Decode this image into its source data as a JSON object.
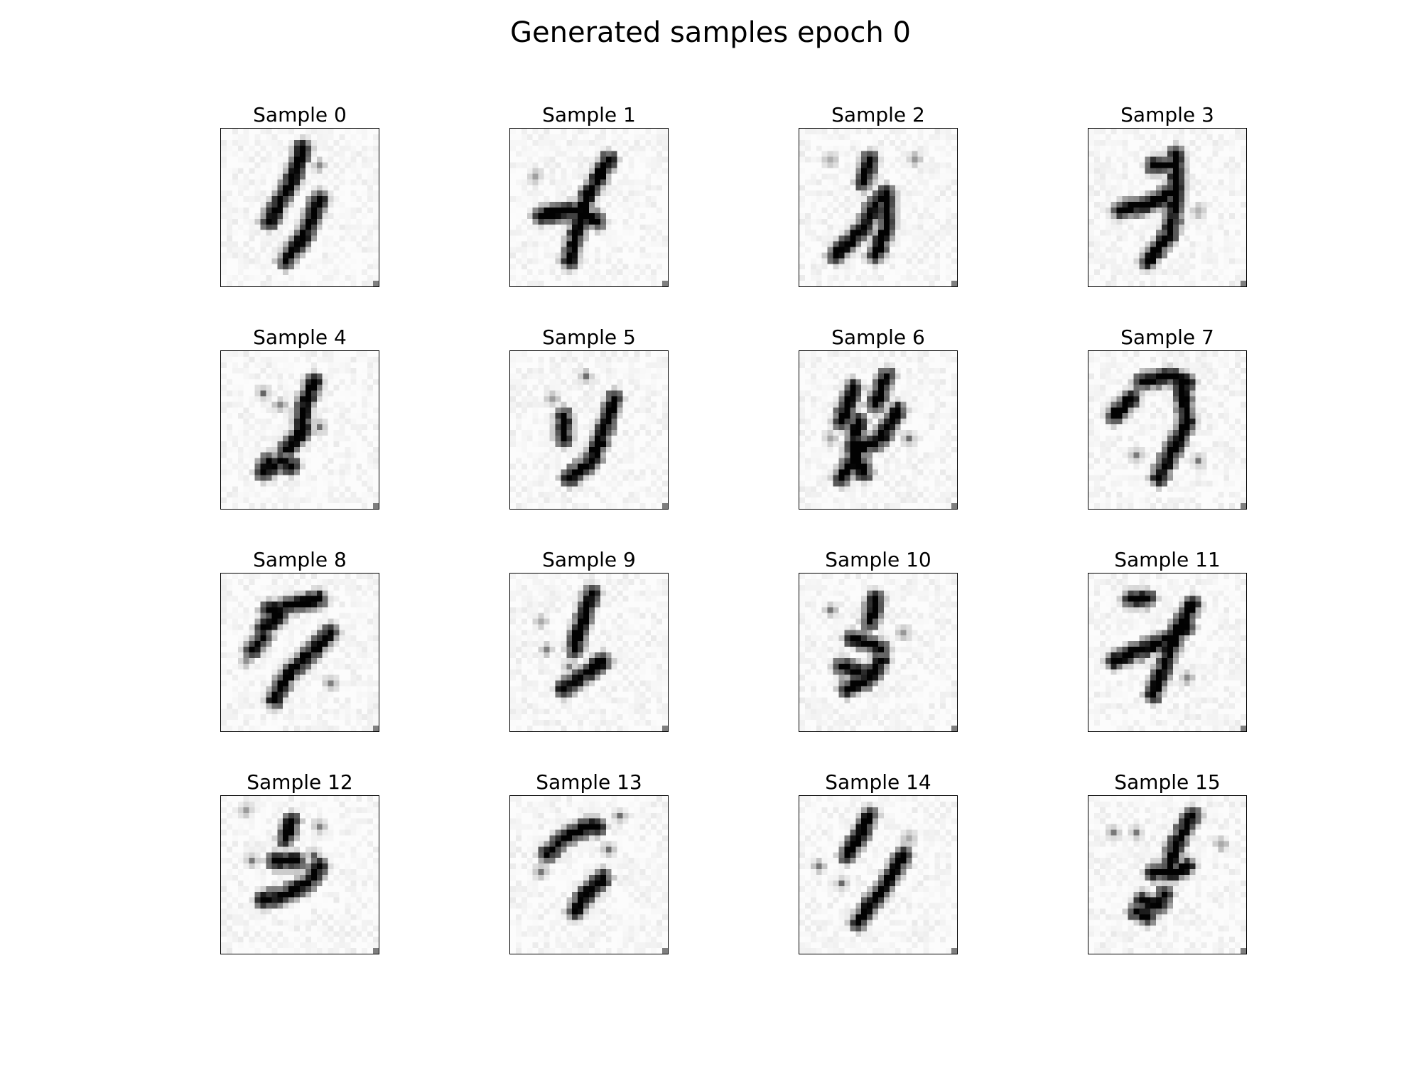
{
  "title": "Generated samples epoch 0",
  "colormap": {
    "background": "#ffffff",
    "ink": "#000000"
  },
  "samples": [
    {
      "label": "Sample 0",
      "strokes": [
        [
          [
            14,
            3
          ],
          [
            12,
            9
          ],
          [
            8,
            16
          ]
        ],
        [
          [
            17,
            12
          ],
          [
            14,
            19
          ],
          [
            11,
            23
          ]
        ]
      ],
      "blobs": [
        [
          17,
          6
        ],
        [
          18,
          12
        ]
      ]
    },
    {
      "label": "Sample 1",
      "strokes": [
        [
          [
            17,
            5
          ],
          [
            13,
            12
          ],
          [
            11,
            19
          ],
          [
            10,
            23
          ]
        ],
        [
          [
            5,
            15
          ],
          [
            11,
            14
          ],
          [
            15,
            16
          ]
        ]
      ],
      "blobs": [
        [
          4,
          8
        ]
      ]
    },
    {
      "label": "Sample 2",
      "strokes": [
        [
          [
            12,
            5
          ],
          [
            11,
            9
          ]
        ],
        [
          [
            6,
            22
          ],
          [
            11,
            17
          ],
          [
            13,
            13
          ],
          [
            15,
            11
          ],
          [
            15,
            17
          ],
          [
            13,
            22
          ]
        ]
      ],
      "blobs": [
        [
          20,
          5
        ],
        [
          5,
          5
        ]
      ]
    },
    {
      "label": "Sample 3",
      "strokes": [
        [
          [
            15,
            4
          ],
          [
            15,
            12
          ],
          [
            14,
            18
          ],
          [
            10,
            23
          ]
        ],
        [
          [
            5,
            14
          ],
          [
            10,
            13
          ],
          [
            14,
            11
          ]
        ],
        [
          [
            11,
            6
          ],
          [
            14,
            6
          ]
        ]
      ],
      "blobs": [
        [
          19,
          14
        ]
      ]
    },
    {
      "label": "Sample 4",
      "strokes": [
        [
          [
            16,
            5
          ],
          [
            14,
            10
          ],
          [
            14,
            14
          ],
          [
            11,
            17
          ]
        ],
        [
          [
            8,
            19
          ],
          [
            7,
            21
          ],
          [
            10,
            19
          ],
          [
            12,
            20
          ]
        ]
      ],
      "blobs": [
        [
          7,
          7
        ],
        [
          10,
          9
        ],
        [
          17,
          13
        ]
      ]
    },
    {
      "label": "Sample 5",
      "strokes": [
        [
          [
            18,
            8
          ],
          [
            16,
            14
          ],
          [
            14,
            19
          ],
          [
            10,
            22
          ]
        ],
        [
          [
            9,
            11
          ],
          [
            9,
            15
          ]
        ]
      ],
      "blobs": [
        [
          7,
          8
        ],
        [
          13,
          4
        ]
      ]
    },
    {
      "label": "Sample 6",
      "strokes": [
        [
          [
            9,
            6
          ],
          [
            7,
            12
          ]
        ],
        [
          [
            15,
            4
          ],
          [
            13,
            9
          ]
        ],
        [
          [
            17,
            10
          ],
          [
            14,
            15
          ],
          [
            10,
            17
          ],
          [
            7,
            22
          ]
        ],
        [
          [
            10,
            12
          ],
          [
            9,
            17
          ],
          [
            11,
            21
          ]
        ]
      ],
      "blobs": [
        [
          19,
          15
        ],
        [
          5,
          15
        ]
      ]
    },
    {
      "label": "Sample 7",
      "strokes": [
        [
          [
            16,
            5
          ],
          [
            17,
            12
          ],
          [
            14,
            18
          ],
          [
            12,
            22
          ]
        ],
        [
          [
            9,
            5
          ],
          [
            14,
            4
          ],
          [
            17,
            5
          ]
        ],
        [
          [
            4,
            11
          ],
          [
            7,
            8
          ]
        ]
      ],
      "blobs": [
        [
          8,
          18
        ],
        [
          19,
          19
        ]
      ]
    },
    {
      "label": "Sample 8",
      "strokes": [
        [
          [
            19,
            10
          ],
          [
            14,
            15
          ],
          [
            11,
            18
          ],
          [
            9,
            22
          ]
        ],
        [
          [
            8,
            6
          ],
          [
            13,
            5
          ],
          [
            17,
            4
          ]
        ],
        [
          [
            5,
            13
          ],
          [
            7,
            11
          ]
        ],
        [
          [
            7,
            9
          ],
          [
            10,
            7
          ]
        ]
      ],
      "blobs": [
        [
          19,
          19
        ],
        [
          4,
          15
        ]
      ]
    },
    {
      "label": "Sample 9",
      "strokes": [
        [
          [
            14,
            3
          ],
          [
            12,
            9
          ],
          [
            11,
            13
          ]
        ],
        [
          [
            16,
            15
          ],
          [
            12,
            18
          ],
          [
            9,
            20
          ]
        ]
      ],
      "blobs": [
        [
          5,
          8
        ],
        [
          6,
          13
        ],
        [
          10,
          16
        ]
      ]
    },
    {
      "label": "Sample 10",
      "strokes": [
        [
          [
            13,
            4
          ],
          [
            12,
            8
          ]
        ],
        [
          [
            9,
            11
          ],
          [
            12,
            12
          ],
          [
            14,
            13
          ]
        ],
        [
          [
            14,
            15
          ],
          [
            12,
            18
          ],
          [
            8,
            20
          ]
        ],
        [
          [
            7,
            16
          ],
          [
            10,
            17
          ]
        ]
      ],
      "blobs": [
        [
          5,
          6
        ],
        [
          18,
          10
        ]
      ]
    },
    {
      "label": "Sample 11",
      "strokes": [
        [
          [
            18,
            5
          ],
          [
            15,
            10
          ],
          [
            13,
            16
          ],
          [
            11,
            21
          ]
        ],
        [
          [
            4,
            15
          ],
          [
            9,
            13
          ],
          [
            14,
            11
          ],
          [
            17,
            9
          ]
        ],
        [
          [
            7,
            4
          ],
          [
            10,
            4
          ]
        ]
      ],
      "blobs": [
        [
          17,
          18
        ]
      ]
    },
    {
      "label": "Sample 12",
      "strokes": [
        [
          [
            12,
            4
          ],
          [
            11,
            7
          ]
        ],
        [
          [
            9,
            11
          ],
          [
            13,
            11
          ]
        ],
        [
          [
            7,
            18
          ],
          [
            11,
            17
          ],
          [
            15,
            15
          ],
          [
            17,
            12
          ]
        ]
      ],
      "blobs": [
        [
          17,
          5
        ],
        [
          16,
          10
        ],
        [
          5,
          11
        ],
        [
          4,
          2
        ]
      ]
    },
    {
      "label": "Sample 13",
      "strokes": [
        [
          [
            6,
            10
          ],
          [
            9,
            7
          ],
          [
            13,
            5
          ],
          [
            15,
            5
          ]
        ],
        [
          [
            16,
            14
          ],
          [
            13,
            17
          ],
          [
            11,
            20
          ]
        ]
      ],
      "blobs": [
        [
          17,
          9
        ],
        [
          5,
          13
        ],
        [
          19,
          3
        ]
      ]
    },
    {
      "label": "Sample 14",
      "strokes": [
        [
          [
            12,
            3
          ],
          [
            10,
            7
          ],
          [
            8,
            10
          ]
        ],
        [
          [
            18,
            10
          ],
          [
            15,
            15
          ],
          [
            12,
            19
          ],
          [
            10,
            22
          ]
        ]
      ],
      "blobs": [
        [
          7,
          15
        ],
        [
          19,
          7
        ],
        [
          3,
          12
        ]
      ]
    },
    {
      "label": "Sample 15",
      "strokes": [
        [
          [
            18,
            3
          ],
          [
            15,
            8
          ],
          [
            14,
            12
          ]
        ],
        [
          [
            11,
            13
          ],
          [
            15,
            13
          ],
          [
            17,
            12
          ]
        ],
        [
          [
            9,
            18
          ],
          [
            12,
            19
          ],
          [
            13,
            17
          ]
        ],
        [
          [
            8,
            20
          ],
          [
            10,
            21
          ]
        ]
      ],
      "blobs": [
        [
          4,
          6
        ],
        [
          8,
          6
        ],
        [
          23,
          8
        ]
      ]
    }
  ]
}
